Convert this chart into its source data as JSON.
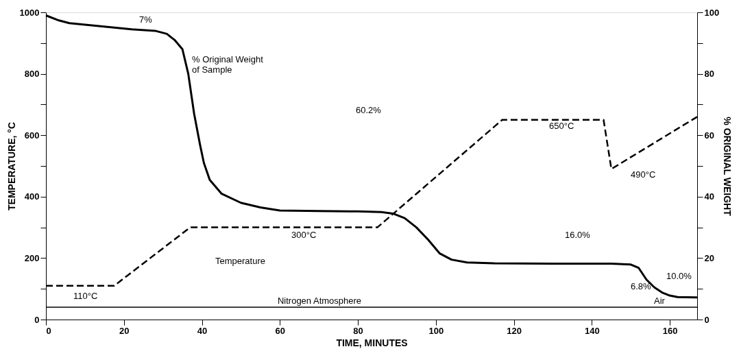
{
  "chart_data": {
    "type": "line",
    "xlabel": "TIME, MINUTES",
    "ylabel": "TEMPERATURE, °C",
    "y2label": "% ORIGINAL WEIGHT",
    "xlim": [
      0,
      167
    ],
    "xticks": [
      0,
      20,
      40,
      60,
      80,
      100,
      120,
      140,
      160
    ],
    "ylim": [
      0,
      1000
    ],
    "yticks": [
      0,
      {
        "value": 100,
        "label": null
      },
      200,
      {
        "value": 300,
        "label": null
      },
      400,
      {
        "value": 500,
        "label": null
      },
      600,
      {
        "value": 700,
        "label": null
      },
      800,
      {
        "value": 900,
        "label": null
      },
      1000
    ],
    "y2lim": [
      0,
      100
    ],
    "y2ticks": [
      0,
      {
        "value": 10,
        "label": null
      },
      20,
      {
        "value": 30,
        "label": null
      },
      40,
      {
        "value": 50,
        "label": null
      },
      60,
      {
        "value": 70,
        "label": null
      },
      80,
      {
        "value": 90,
        "label": null
      },
      100
    ],
    "grid": false,
    "marker": "none",
    "series": [
      {
        "color": "#000000",
        "line_style": "dashed",
        "x": [
          0,
          17.5,
          37,
          85,
          117,
          143,
          145,
          167
        ],
        "values": [
          110,
          110,
          300,
          300,
          650,
          650,
          490,
          660
        ]
      },
      {
        "color": "#000000",
        "line_style": "solid",
        "axis": "y2",
        "x": [
          0,
          3,
          6,
          14,
          22,
          28,
          31,
          33,
          35,
          36.5,
          38,
          39.5,
          40.5,
          42,
          45,
          50,
          55,
          60,
          70,
          80,
          86,
          89,
          92,
          95,
          98,
          101,
          104,
          108,
          115,
          130,
          145,
          150,
          152,
          154,
          156,
          158,
          160,
          162,
          167
        ],
        "values": [
          99,
          97.5,
          96.5,
          95.5,
          94.5,
          94,
          93,
          91,
          88,
          80,
          67,
          57,
          51,
          45.5,
          41,
          38,
          36.5,
          35.5,
          35.3,
          35.2,
          35,
          34.5,
          33,
          30,
          26,
          21.5,
          19.5,
          18.6,
          18.3,
          18.2,
          18.2,
          17.9,
          16.8,
          13,
          10.5,
          8.8,
          7.8,
          7.3,
          7.2
        ]
      }
    ],
    "ref_lines": [
      {
        "axis": "y",
        "value": 40,
        "label": "Nitrogen Atmosphere",
        "color": "#000000",
        "line_style": "solid"
      }
    ],
    "annotations": [
      "7%",
      "% Original Weight\nof Sample",
      "60.2%",
      "Temperature",
      "300°C",
      "110°C",
      "650°C",
      "490°C",
      "16.0%",
      "10.0%",
      "6.8%",
      "Air"
    ]
  }
}
